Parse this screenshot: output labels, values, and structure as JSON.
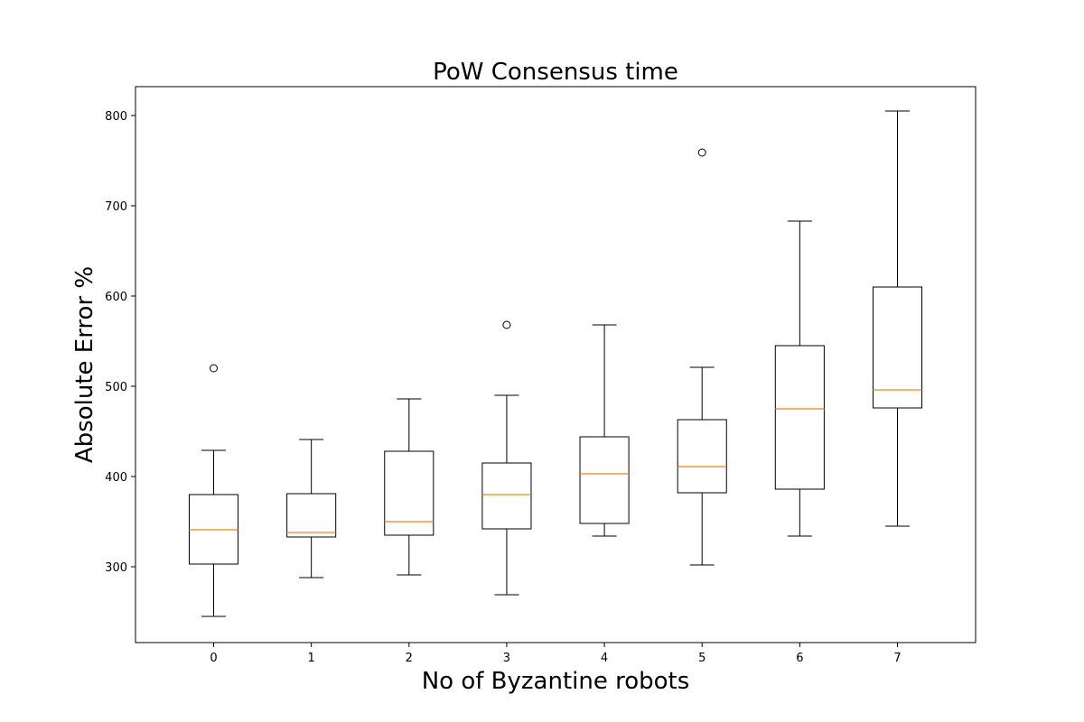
{
  "chart_data": {
    "type": "box",
    "title": "PoW Consensus time",
    "xlabel": "No of Byzantine robots",
    "ylabel": "Absolute Error %",
    "categories": [
      "0",
      "1",
      "2",
      "3",
      "4",
      "5",
      "6",
      "7"
    ],
    "ylim": [
      216,
      832
    ],
    "yticks": [
      300,
      400,
      500,
      600,
      700,
      800
    ],
    "grid": false,
    "boxes": [
      {
        "whisker_low": 245,
        "q1": 303,
        "median": 341,
        "q3": 380,
        "whisker_high": 429,
        "outliers": [
          520
        ]
      },
      {
        "whisker_low": 288,
        "q1": 333,
        "median": 338,
        "q3": 381,
        "whisker_high": 441,
        "outliers": []
      },
      {
        "whisker_low": 291,
        "q1": 335,
        "median": 350,
        "q3": 428,
        "whisker_high": 486,
        "outliers": []
      },
      {
        "whisker_low": 269,
        "q1": 342,
        "median": 380,
        "q3": 415,
        "whisker_high": 490,
        "outliers": [
          568
        ]
      },
      {
        "whisker_low": 334,
        "q1": 348,
        "median": 403,
        "q3": 444,
        "whisker_high": 568,
        "outliers": []
      },
      {
        "whisker_low": 302,
        "q1": 382,
        "median": 411,
        "q3": 463,
        "whisker_high": 521,
        "outliers": [
          759
        ]
      },
      {
        "whisker_low": 334,
        "q1": 386,
        "median": 475,
        "q3": 545,
        "whisker_high": 683,
        "outliers": []
      },
      {
        "whisker_low": 345,
        "q1": 476,
        "median": 496,
        "q3": 610,
        "whisker_high": 805,
        "outliers": []
      }
    ],
    "colors": {
      "box": "#000000",
      "median": "#ff7f0e",
      "outlier": "#000000"
    }
  }
}
